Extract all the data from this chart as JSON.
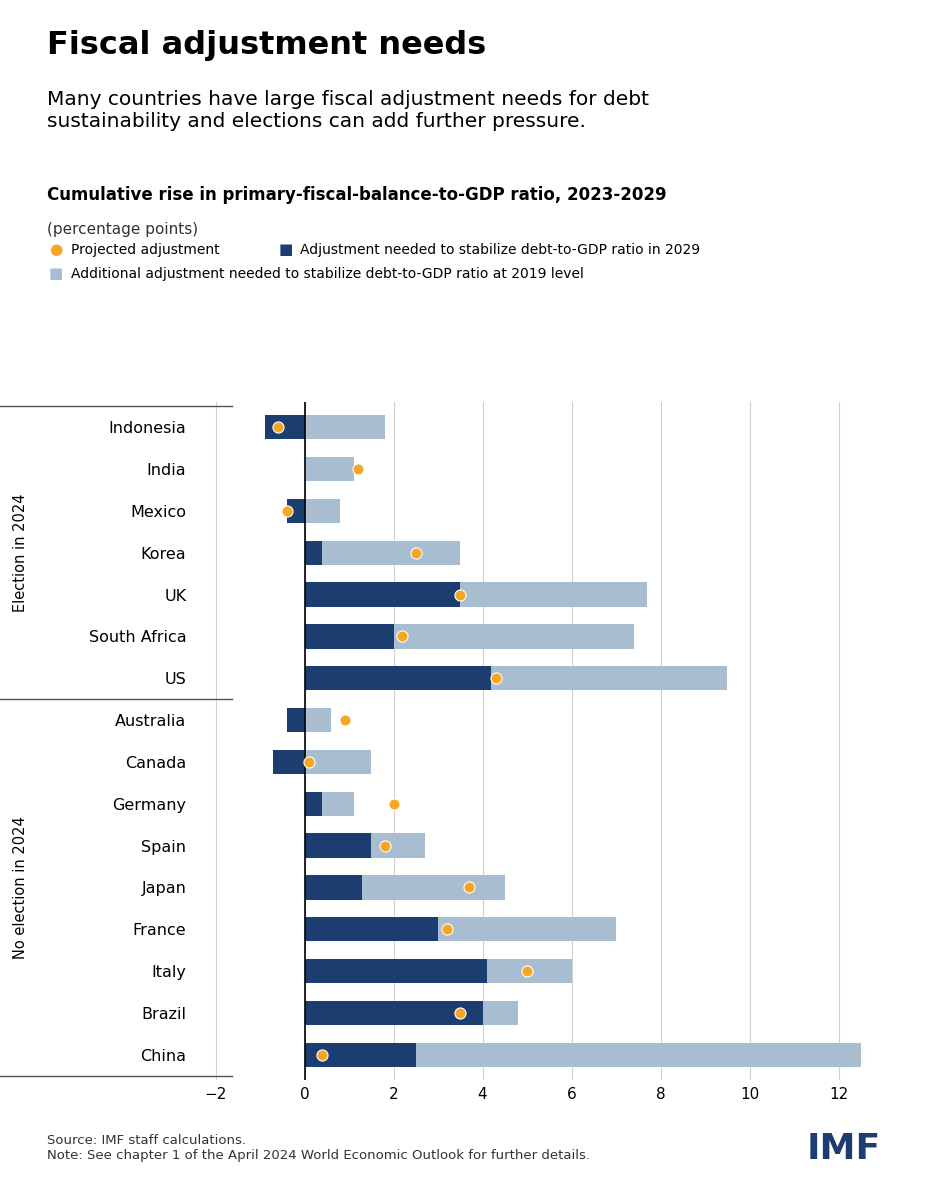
{
  "title": "Fiscal adjustment needs",
  "subtitle": "Many countries have large fiscal adjustment needs for debt\nsustainability and elections can add further pressure.",
  "chart_title": "Cumulative rise in primary-fiscal-balance-to-GDP ratio, 2023-2029",
  "chart_subtitle": "(percentage points)",
  "countries": [
    "Indonesia",
    "India",
    "Mexico",
    "Korea",
    "UK",
    "South Africa",
    "US",
    "Australia",
    "Canada",
    "Germany",
    "Spain",
    "Japan",
    "France",
    "Italy",
    "Brazil",
    "China"
  ],
  "election_group": [
    "Indonesia",
    "India",
    "Mexico",
    "Korea",
    "UK",
    "South Africa",
    "US"
  ],
  "no_election_group": [
    "Australia",
    "Canada",
    "Germany",
    "Spain",
    "Japan",
    "France",
    "Italy",
    "Brazil",
    "China"
  ],
  "dark_blue_bars": [
    -0.9,
    0.0,
    -0.4,
    0.4,
    3.5,
    2.0,
    4.2,
    -0.4,
    -0.7,
    0.4,
    1.5,
    1.3,
    3.0,
    4.1,
    4.0,
    2.5
  ],
  "light_blue_bars": [
    1.8,
    1.1,
    0.8,
    3.5,
    7.7,
    7.4,
    9.5,
    0.6,
    1.5,
    1.1,
    2.7,
    4.5,
    7.0,
    6.0,
    4.8,
    12.5
  ],
  "projected_dots": [
    -0.6,
    1.2,
    -0.4,
    2.5,
    3.5,
    2.2,
    4.3,
    0.9,
    0.1,
    2.0,
    1.8,
    3.7,
    3.2,
    5.0,
    3.5,
    0.4
  ],
  "dark_blue_color": "#1B3D6F",
  "light_blue_color": "#A8BDD0",
  "dot_color": "#F5A623",
  "election_label": "Election in 2024",
  "no_election_label": "No election in 2024",
  "xlim": [
    -2.5,
    13.5
  ],
  "xticks": [
    -2,
    0,
    2,
    4,
    6,
    8,
    10,
    12
  ],
  "source_text": "Source: IMF staff calculations.\nNote: See chapter 1 of the April 2024 World Economic Outlook for further details.",
  "legend1": "Projected adjustment",
  "legend2": "Adjustment needed to stabilize debt-to-GDP ratio in 2029",
  "legend3": "Additional adjustment needed to stabilize debt-to-GDP ratio at 2019 level",
  "background_color": "#ffffff",
  "bar_height": 0.58
}
